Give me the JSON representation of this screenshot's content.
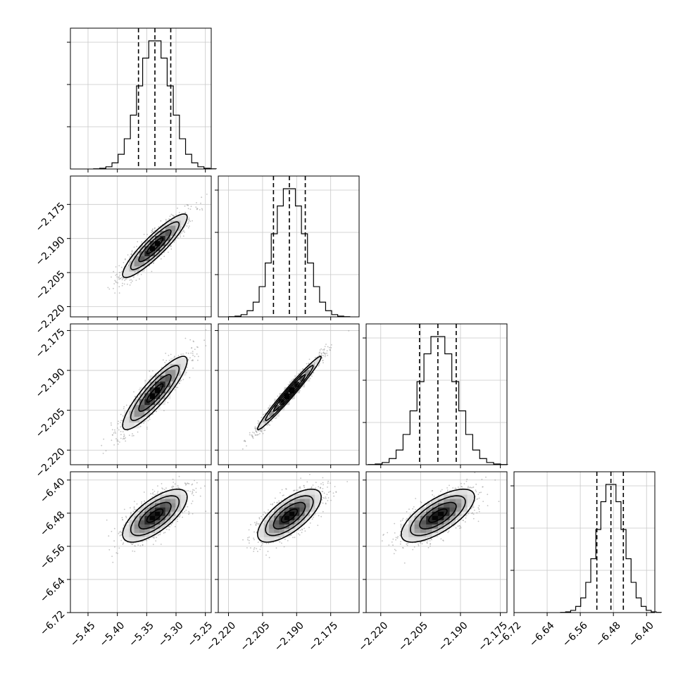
{
  "chart_data": {
    "type": "corner",
    "title": "",
    "grid": true,
    "parameters": [
      {
        "name": "",
        "median": -5.336,
        "q16": -5.364,
        "q84": -5.309,
        "sigma": 0.0275,
        "range": [
          -5.48,
          -5.24
        ],
        "ticks": [
          "−5.45",
          "−5.40",
          "−5.35",
          "−5.30",
          "−5.25"
        ],
        "tick_values": [
          -5.45,
          -5.4,
          -5.35,
          -5.3,
          -5.25
        ]
      },
      {
        "name": "",
        "median": -2.1932,
        "q16": -2.2002,
        "q84": -2.1862,
        "sigma": 0.007,
        "range": [
          -2.2245,
          -2.1625
        ],
        "ticks": [
          "−2.220",
          "−2.205",
          "−2.190",
          "−2.175"
        ],
        "tick_values": [
          -2.22,
          -2.205,
          -2.19,
          -2.175
        ]
      },
      {
        "name": "",
        "median": -2.1985,
        "q16": -2.2054,
        "q84": -2.1916,
        "sigma": 0.0069,
        "range": [
          -2.2255,
          -2.1725
        ],
        "ticks": [
          "−2.220",
          "−2.205",
          "−2.190",
          "−2.175"
        ],
        "tick_values": [
          -2.22,
          -2.205,
          -2.19,
          -2.175
        ]
      },
      {
        "name": "",
        "median": -6.486,
        "q16": -6.52,
        "q84": -6.456,
        "sigma": 0.032,
        "range": [
          -6.72,
          -6.38
        ],
        "ticks": [
          "−6.72",
          "−6.64",
          "−6.56",
          "−6.48",
          "−6.40"
        ],
        "tick_values": [
          -6.72,
          -6.64,
          -6.56,
          -6.48,
          -6.4
        ]
      }
    ],
    "correlations": [
      {
        "pair": [
          0,
          1
        ],
        "rho": 0.9
      },
      {
        "pair": [
          0,
          2
        ],
        "rho": 0.88
      },
      {
        "pair": [
          1,
          2
        ],
        "rho": 0.98
      },
      {
        "pair": [
          0,
          3
        ],
        "rho": 0.7
      },
      {
        "pair": [
          1,
          3
        ],
        "rho": 0.7
      },
      {
        "pair": [
          2,
          3
        ],
        "rho": 0.7
      }
    ],
    "histogram_bins": 20,
    "quantiles": [
      0.16,
      0.5,
      0.84
    ],
    "contour_levels_sigma": [
      0.5,
      1.0,
      1.5,
      2.0
    ]
  }
}
